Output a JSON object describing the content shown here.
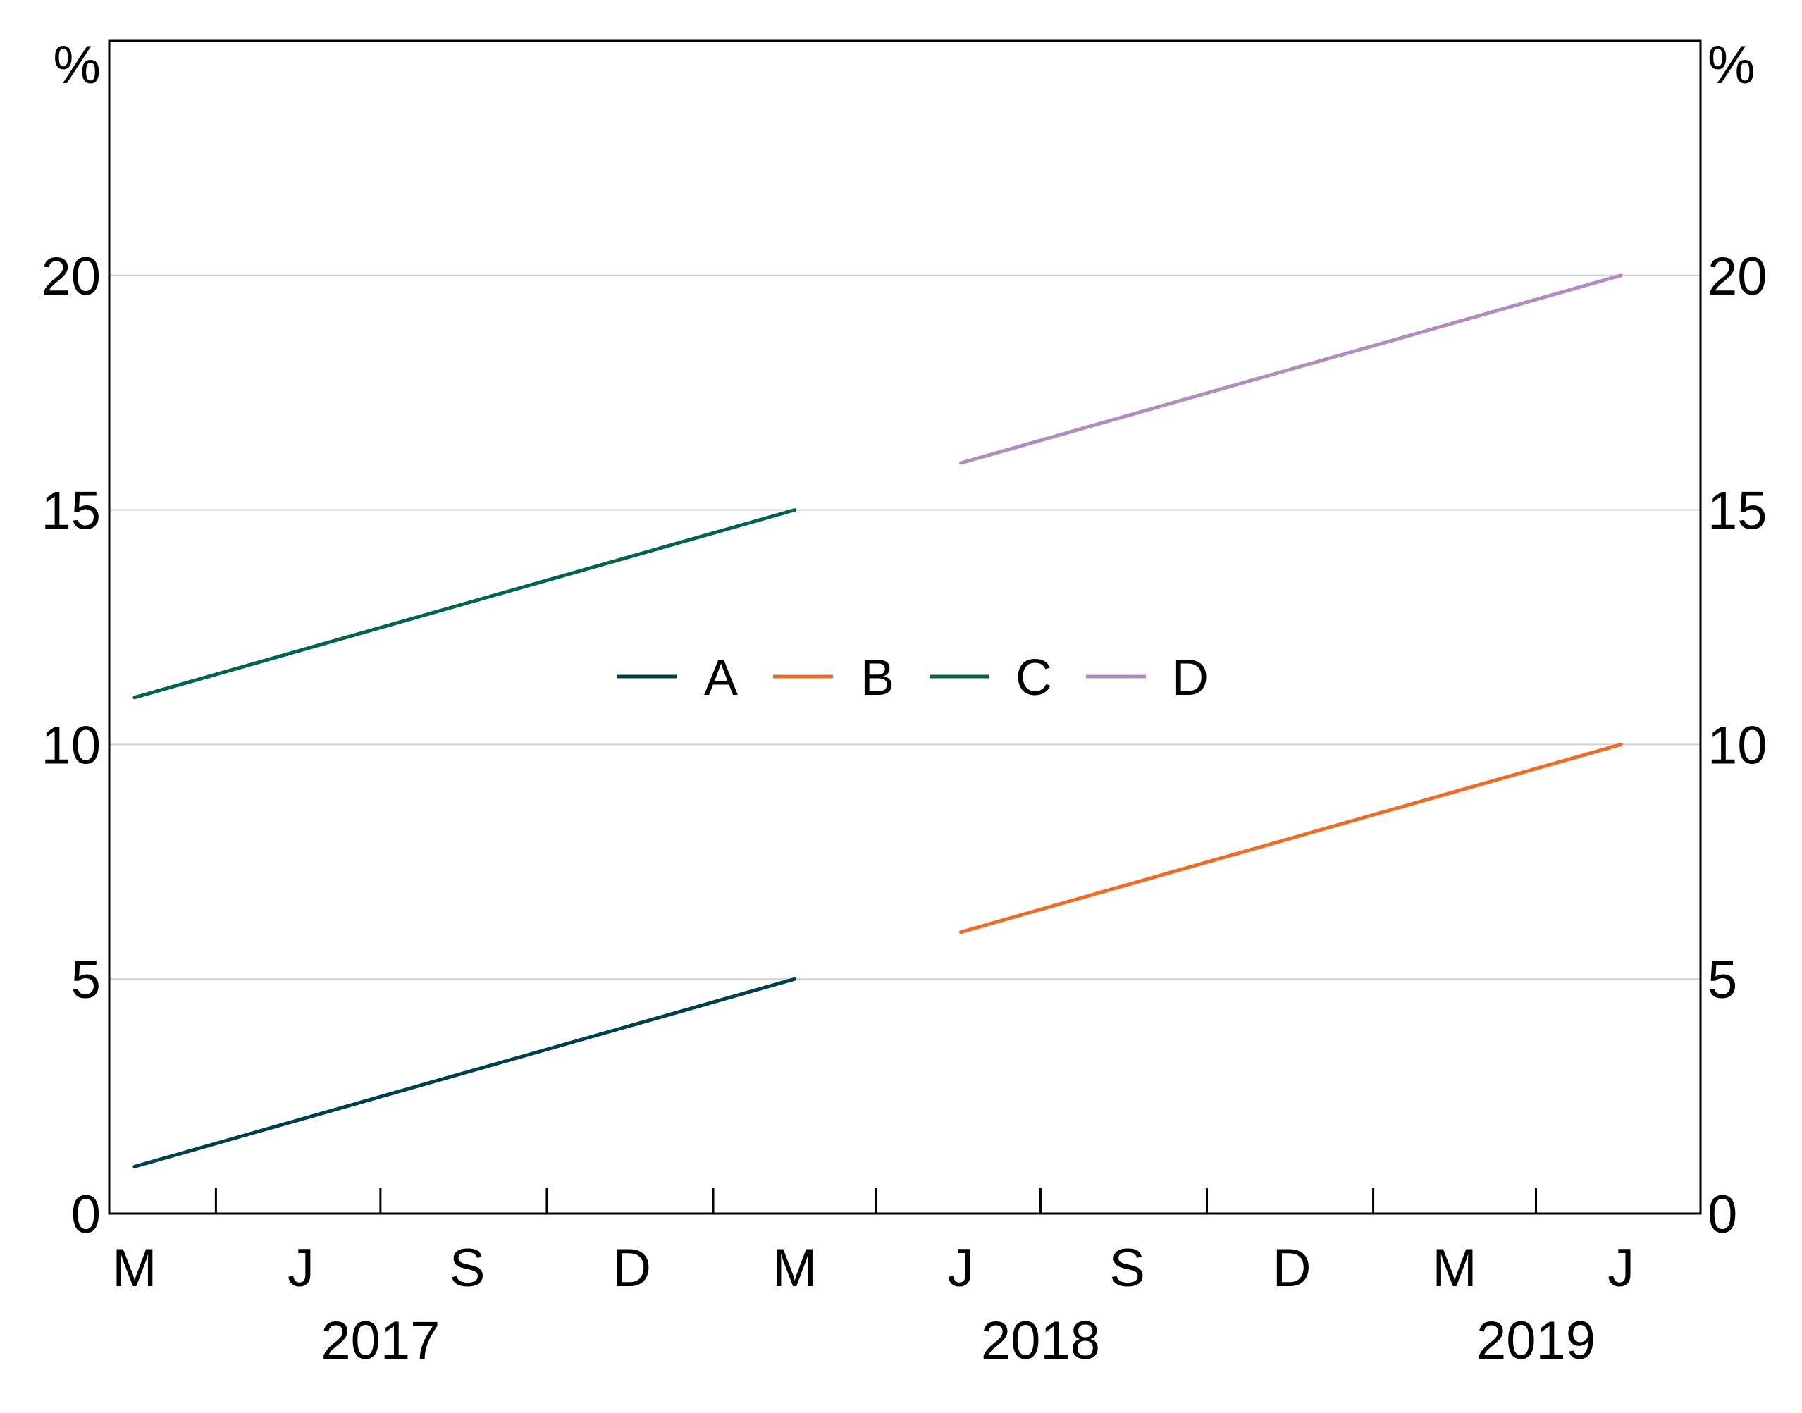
{
  "chart_data": {
    "type": "line",
    "y_unit_left": "%",
    "y_unit_right": "%",
    "ylim": [
      0,
      25
    ],
    "yticks": [
      0,
      5,
      10,
      15,
      20
    ],
    "xlim": [
      "2017-02-15",
      "2019-07-15"
    ],
    "x_month_labels": [
      {
        "label": "M",
        "date": "2017-03-01"
      },
      {
        "label": "J",
        "date": "2017-06-01"
      },
      {
        "label": "S",
        "date": "2017-09-01"
      },
      {
        "label": "D",
        "date": "2017-12-01"
      },
      {
        "label": "M",
        "date": "2018-03-01"
      },
      {
        "label": "J",
        "date": "2018-06-01"
      },
      {
        "label": "S",
        "date": "2018-09-01"
      },
      {
        "label": "D",
        "date": "2018-12-01"
      },
      {
        "label": "M",
        "date": "2019-03-01"
      },
      {
        "label": "J",
        "date": "2019-06-01"
      }
    ],
    "x_tick_dates": [
      "2017-04-15",
      "2017-07-15",
      "2017-10-15",
      "2018-01-15",
      "2018-04-15",
      "2018-07-15",
      "2018-10-15",
      "2019-01-15",
      "2019-04-15"
    ],
    "x_year_labels": [
      {
        "label": "2017",
        "date": "2017-07-15"
      },
      {
        "label": "2018",
        "date": "2018-07-15"
      },
      {
        "label": "2019",
        "date": "2019-04-15"
      }
    ],
    "grid": true,
    "legend_position": "center",
    "series": [
      {
        "name": "A",
        "color": "#003f4f",
        "points": [
          {
            "x": "2017-03-01",
            "y": 1
          },
          {
            "x": "2018-03-01",
            "y": 5
          }
        ]
      },
      {
        "name": "B",
        "color": "#f26b21",
        "points": [
          {
            "x": "2018-06-01",
            "y": 6
          },
          {
            "x": "2019-06-01",
            "y": 10
          }
        ]
      },
      {
        "name": "C",
        "color": "#006550",
        "points": [
          {
            "x": "2017-03-01",
            "y": 11
          },
          {
            "x": "2018-03-01",
            "y": 15
          }
        ]
      },
      {
        "name": "D",
        "color": "#b38bc0",
        "points": [
          {
            "x": "2018-06-01",
            "y": 16
          },
          {
            "x": "2019-06-01",
            "y": 20
          }
        ]
      }
    ]
  }
}
